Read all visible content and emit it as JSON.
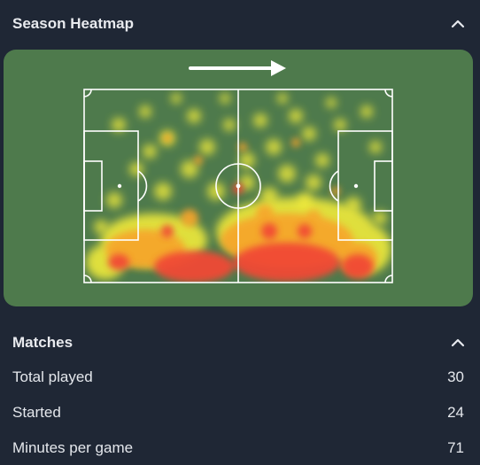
{
  "heatmap_section": {
    "title": "Season Heatmap",
    "collapse_icon": "chevron-up-icon",
    "direction_icon": "arrow-right-icon",
    "pitch_color": "#4e7a4c",
    "line_color": "#ffffff",
    "intensity_colors": [
      "#f9f13a",
      "#f7b12b",
      "#f14a34"
    ]
  },
  "matches_section": {
    "title": "Matches",
    "collapse_icon": "chevron-up-icon",
    "rows": [
      {
        "label": "Total played",
        "value": "30"
      },
      {
        "label": "Started",
        "value": "24"
      },
      {
        "label": "Minutes per game",
        "value": "71"
      }
    ]
  }
}
